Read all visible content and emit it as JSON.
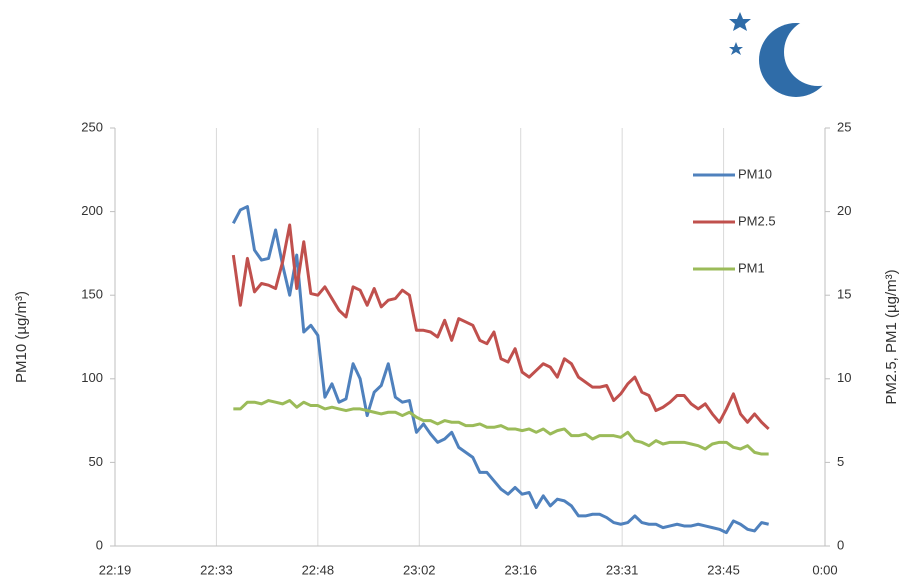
{
  "chart_data": {
    "type": "line",
    "ylabel": "PM10 (µg/m³)",
    "y2label": "PM2.5, PM1 (µg/m³)",
    "xlim": [
      1339.2,
      1440
    ],
    "xticks": [
      {
        "value": 1339.2,
        "label": "22:19"
      },
      {
        "value": 1353.6,
        "label": "22:33"
      },
      {
        "value": 1368,
        "label": "22:48"
      },
      {
        "value": 1382.4,
        "label": "23:02"
      },
      {
        "value": 1396.8,
        "label": "23:16"
      },
      {
        "value": 1411.2,
        "label": "23:31"
      },
      {
        "value": 1425.6,
        "label": "23:45"
      },
      {
        "value": 1440,
        "label": "0:00"
      }
    ],
    "ylim": [
      0,
      250
    ],
    "yticks": [
      0,
      50,
      100,
      150,
      200,
      250
    ],
    "y2lim": [
      0,
      25
    ],
    "y2ticks": [
      0,
      5,
      10,
      15,
      20,
      25
    ],
    "grid": "x",
    "x": [
      1356,
      1357,
      1358,
      1359,
      1360,
      1361,
      1362,
      1363,
      1364,
      1365,
      1366,
      1367,
      1368,
      1369,
      1370,
      1371,
      1372,
      1373,
      1374,
      1375,
      1376,
      1377,
      1378,
      1379,
      1380,
      1381,
      1382,
      1383,
      1384,
      1385,
      1386,
      1387,
      1388,
      1389,
      1390,
      1391,
      1392,
      1393,
      1394,
      1395,
      1396,
      1397,
      1398,
      1399,
      1400,
      1401,
      1402,
      1403,
      1404,
      1405,
      1406,
      1407,
      1408,
      1409,
      1410,
      1411,
      1412,
      1413,
      1414,
      1415,
      1416,
      1417,
      1418,
      1419,
      1420,
      1421,
      1422,
      1423,
      1424,
      1425,
      1426,
      1427,
      1428,
      1429,
      1430,
      1431,
      1432
    ],
    "series": [
      {
        "name": "PM10",
        "color": "#4f81bd",
        "axis": "y",
        "values": [
          193,
          201,
          203,
          177,
          171,
          172,
          189,
          168,
          150,
          174,
          128,
          132,
          126,
          89,
          97,
          86,
          88,
          109,
          100,
          78,
          92,
          96,
          109,
          89,
          86,
          87,
          68,
          73,
          67,
          62,
          64,
          68,
          59,
          56,
          53,
          44,
          44,
          39,
          34,
          31,
          35,
          31,
          32,
          23,
          30,
          24,
          28,
          27,
          24,
          18,
          18,
          19,
          19,
          17,
          14,
          13,
          14,
          18,
          14,
          13,
          13,
          11,
          12,
          13,
          12,
          12,
          13,
          12,
          11,
          10,
          8,
          15,
          13,
          10,
          9,
          14,
          13
        ]
      },
      {
        "name": "PM2.5",
        "color": "#c0504d",
        "axis": "y2",
        "values": [
          17.4,
          14.4,
          17.2,
          15.2,
          15.7,
          15.6,
          15.4,
          17.0,
          19.2,
          15.4,
          18.2,
          15.1,
          15.0,
          15.5,
          14.8,
          14.1,
          13.7,
          15.5,
          15.3,
          14.4,
          15.4,
          14.3,
          14.7,
          14.8,
          15.3,
          15.0,
          12.9,
          12.9,
          12.8,
          12.5,
          13.5,
          12.3,
          13.6,
          13.4,
          13.2,
          12.3,
          12.1,
          12.8,
          11.2,
          11.0,
          11.8,
          10.4,
          10.1,
          10.5,
          10.9,
          10.7,
          10.1,
          11.2,
          10.9,
          10.1,
          9.8,
          9.5,
          9.5,
          9.6,
          8.7,
          9.1,
          9.7,
          10.1,
          9.2,
          9.0,
          8.1,
          8.3,
          8.6,
          9.0,
          9.0,
          8.5,
          8.2,
          8.5,
          7.9,
          7.4,
          8.2,
          9.1,
          7.9,
          7.4,
          7.9,
          7.4,
          7.0
        ]
      },
      {
        "name": "PM1",
        "color": "#9bbb59",
        "axis": "y2",
        "values": [
          8.2,
          8.2,
          8.6,
          8.6,
          8.5,
          8.7,
          8.6,
          8.5,
          8.7,
          8.3,
          8.6,
          8.4,
          8.4,
          8.2,
          8.3,
          8.2,
          8.1,
          8.2,
          8.2,
          8.1,
          8.0,
          7.9,
          8.0,
          8.0,
          7.8,
          8.0,
          7.7,
          7.5,
          7.5,
          7.3,
          7.5,
          7.4,
          7.4,
          7.2,
          7.2,
          7.3,
          7.1,
          7.1,
          7.2,
          7.0,
          7.0,
          6.9,
          7.0,
          6.8,
          7.0,
          6.7,
          6.9,
          7.0,
          6.6,
          6.6,
          6.7,
          6.4,
          6.6,
          6.6,
          6.6,
          6.5,
          6.8,
          6.3,
          6.2,
          6.0,
          6.3,
          6.1,
          6.2,
          6.2,
          6.2,
          6.1,
          6.0,
          5.8,
          6.1,
          6.2,
          6.2,
          5.9,
          5.8,
          6.0,
          5.6,
          5.5,
          5.5
        ]
      }
    ]
  }
}
